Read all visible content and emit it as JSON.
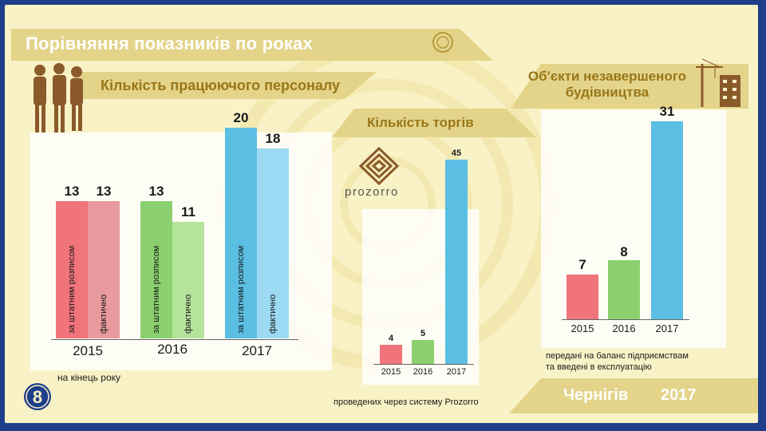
{
  "header": {
    "title": "Порівняння показників по роках"
  },
  "colors": {
    "banner": "#e3d48a",
    "gold": "#9a7618",
    "frame": "#1f3f8a",
    "red": "#f07479",
    "red_light": "#e89a9e",
    "green": "#8bd06f",
    "green_light": "#b4e39b",
    "blue": "#5bbfe3",
    "blue_light": "#9cd9f2"
  },
  "icons": [
    "people-icon",
    "crane-icon",
    "prozorro-logo",
    "emblem-icon",
    "number-eight-icon"
  ],
  "staff": {
    "title": "Кількість працюючого персоналу",
    "note": "на кінець року",
    "label_staff": "за штатним розписом",
    "label_actual": "фактично"
  },
  "tenders": {
    "title": "Кількість торгів",
    "logo_text": "prozorro",
    "note": "проведених через систему Prozorro"
  },
  "construction": {
    "title_line1": "Об'єкти незавершеного",
    "title_line2": "будівництва",
    "note_line1": "передані на баланс підприємствам",
    "note_line2": "та введені в експлуатацію"
  },
  "footer": {
    "city": "Чернігів",
    "year": "2017"
  },
  "chart_data": [
    {
      "type": "bar",
      "title": "Кількість працюючого персоналу",
      "categories": [
        "2015",
        "2016",
        "2017"
      ],
      "series": [
        {
          "name": "за штатним розписом",
          "values": [
            13,
            13,
            20
          ]
        },
        {
          "name": "фактично",
          "values": [
            13,
            11,
            18
          ]
        }
      ]
    },
    {
      "type": "bar",
      "title": "Кількість торгів",
      "categories": [
        "2015",
        "2016",
        "2017"
      ],
      "values": [
        4,
        5,
        45
      ]
    },
    {
      "type": "bar",
      "title": "Об'єкти незавершеного будівництва",
      "categories": [
        "2015",
        "2016",
        "2017"
      ],
      "values": [
        7,
        8,
        31
      ]
    }
  ]
}
